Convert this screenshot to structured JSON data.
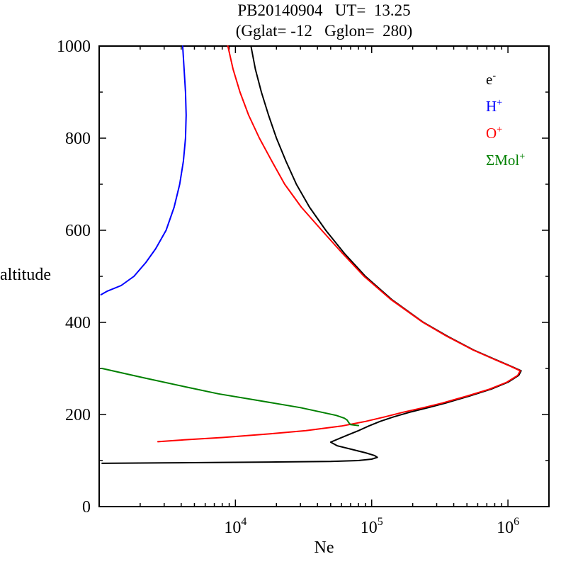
{
  "chart_data": {
    "type": "line",
    "title": "PB20140904   UT=  13.25",
    "subtitle": "(Gglat= -12   Gglon=  280)",
    "xlabel": "Ne",
    "ylabel": "altitude",
    "xscale": "log",
    "xlim": [
      1000,
      2000000
    ],
    "ylim": [
      0,
      1000
    ],
    "yticks": [
      0,
      200,
      400,
      600,
      800,
      1000
    ],
    "ytick_minor_step": 100,
    "xticks": [
      {
        "value": 10000,
        "base": "10",
        "sup": "4"
      },
      {
        "value": 100000,
        "base": "10",
        "sup": "5"
      },
      {
        "value": 1000000,
        "base": "10",
        "sup": "6"
      }
    ],
    "legend": [
      {
        "id": "electron",
        "base": "e",
        "sup": "-",
        "color": "#000000"
      },
      {
        "id": "h-plus",
        "base": "H",
        "sup": "+",
        "color": "#0000ff"
      },
      {
        "id": "o-plus",
        "base": "O",
        "sup": "+",
        "color": "#ff0000"
      },
      {
        "id": "mol-plus",
        "base": "ΣMol",
        "sup": "+",
        "color": "#008000"
      }
    ],
    "series": [
      {
        "id": "electron",
        "name": "e-",
        "color": "#000000",
        "points": [
          [
            13000,
            1000
          ],
          [
            14000,
            950
          ],
          [
            15500,
            900
          ],
          [
            17500,
            850
          ],
          [
            20000,
            800
          ],
          [
            23500,
            750
          ],
          [
            28000,
            700
          ],
          [
            35000,
            650
          ],
          [
            46000,
            600
          ],
          [
            63000,
            550
          ],
          [
            90000,
            500
          ],
          [
            140000,
            450
          ],
          [
            240000,
            400
          ],
          [
            360000,
            370
          ],
          [
            560000,
            340
          ],
          [
            800000,
            320
          ],
          [
            1050000,
            305
          ],
          [
            1250000,
            295
          ],
          [
            1200000,
            285
          ],
          [
            1000000,
            270
          ],
          [
            750000,
            255
          ],
          [
            520000,
            240
          ],
          [
            350000,
            225
          ],
          [
            260000,
            215
          ],
          [
            190000,
            205
          ],
          [
            145000,
            195
          ],
          [
            115000,
            185
          ],
          [
            95000,
            175
          ],
          [
            80000,
            165
          ],
          [
            66000,
            155
          ],
          [
            58000,
            148
          ],
          [
            50000,
            140
          ],
          [
            56000,
            132
          ],
          [
            72000,
            124
          ],
          [
            90000,
            117
          ],
          [
            105000,
            111
          ],
          [
            110000,
            107
          ],
          [
            100000,
            103
          ],
          [
            80000,
            100
          ],
          [
            50000,
            98
          ],
          [
            20000,
            97
          ],
          [
            8000,
            96
          ],
          [
            3000,
            95
          ],
          [
            1050,
            94
          ]
        ]
      },
      {
        "id": "h-plus",
        "name": "H+",
        "color": "#0000ff",
        "points": [
          [
            4100,
            1000
          ],
          [
            4200,
            950
          ],
          [
            4300,
            900
          ],
          [
            4350,
            850
          ],
          [
            4300,
            800
          ],
          [
            4150,
            750
          ],
          [
            3900,
            700
          ],
          [
            3550,
            650
          ],
          [
            3100,
            600
          ],
          [
            2600,
            560
          ],
          [
            2200,
            530
          ],
          [
            1800,
            500
          ],
          [
            1450,
            480
          ],
          [
            1150,
            468
          ],
          [
            1030,
            460
          ]
        ]
      },
      {
        "id": "o-plus",
        "name": "O+",
        "color": "#ff0000",
        "points": [
          [
            8800,
            1000
          ],
          [
            9600,
            950
          ],
          [
            10800,
            900
          ],
          [
            12500,
            850
          ],
          [
            15000,
            800
          ],
          [
            18500,
            750
          ],
          [
            23000,
            700
          ],
          [
            30500,
            650
          ],
          [
            43000,
            600
          ],
          [
            61000,
            550
          ],
          [
            88000,
            500
          ],
          [
            138000,
            450
          ],
          [
            238000,
            400
          ],
          [
            355000,
            370
          ],
          [
            555000,
            340
          ],
          [
            790000,
            320
          ],
          [
            1040000,
            305
          ],
          [
            1230000,
            295
          ],
          [
            1180000,
            285
          ],
          [
            980000,
            270
          ],
          [
            730000,
            255
          ],
          [
            500000,
            240
          ],
          [
            330000,
            225
          ],
          [
            240000,
            215
          ],
          [
            170000,
            205
          ],
          [
            125000,
            195
          ],
          [
            90000,
            185
          ],
          [
            60000,
            175
          ],
          [
            33000,
            165
          ],
          [
            18000,
            158
          ],
          [
            8000,
            150
          ],
          [
            4200,
            145
          ],
          [
            2700,
            141
          ]
        ]
      },
      {
        "id": "mol-plus",
        "name": "ΣMol+",
        "color": "#008000",
        "points": [
          [
            1050,
            300
          ],
          [
            2100,
            280
          ],
          [
            4300,
            260
          ],
          [
            7500,
            245
          ],
          [
            15000,
            230
          ],
          [
            30000,
            215
          ],
          [
            43000,
            205
          ],
          [
            55000,
            198
          ],
          [
            63000,
            192
          ],
          [
            66000,
            188
          ],
          [
            68000,
            182
          ],
          [
            70000,
            178
          ],
          [
            80000,
            176
          ]
        ]
      }
    ]
  }
}
